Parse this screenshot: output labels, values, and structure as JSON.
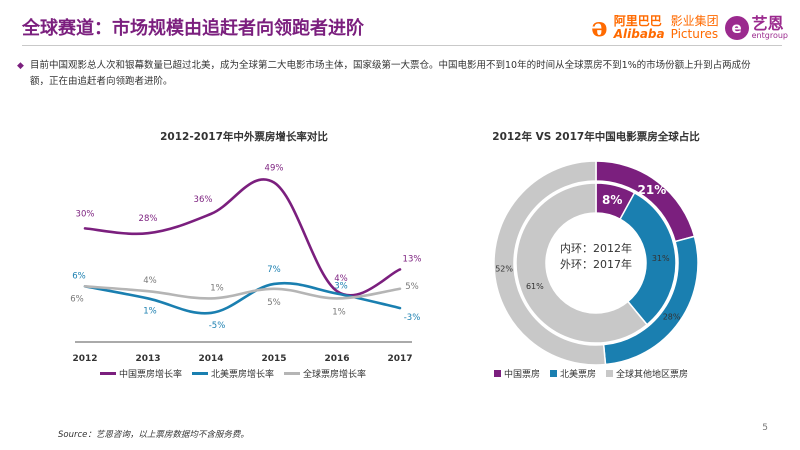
{
  "header": {
    "title": "全球赛道：市场规模由追赶者向领跑者进阶",
    "logos": {
      "alibaba_cn": "阿里巴巴",
      "alibaba_en": "Alibaba",
      "pictures_cn": "影业集团",
      "pictures_en": "Pictures",
      "ent_cn": "艺恩",
      "ent_en": "entgroup"
    }
  },
  "bullet": {
    "marker": "◆",
    "text": "目前中国观影总人次和银幕数量已超过北美，成为全球第二大电影市场主体，国家级第一大票仓。中国电影用不到10年的时间从全球票房不到1%的市场份额上升到占两成份额，正在由追赶者向领跑者进阶。"
  },
  "chart_data": [
    {
      "type": "line",
      "title": "2012-2017年中外票房增长率对比",
      "x": [
        "2012",
        "2013",
        "2014",
        "2015",
        "2016",
        "2017"
      ],
      "ylim": [
        -10,
        55
      ],
      "series": [
        {
          "name": "中国票房增长率",
          "color": "#7b1f7e",
          "values": [
            30,
            28,
            36,
            49,
            4,
            13
          ],
          "labels": [
            "30%",
            "28%",
            "36%",
            "49%",
            "4%",
            "13%"
          ]
        },
        {
          "name": "北美票房增长率",
          "color": "#1a7fb0",
          "values": [
            6,
            1,
            -5,
            7,
            3,
            -3
          ],
          "labels": [
            "6%",
            "1%",
            "-5%",
            "7%",
            "3%",
            "-3%"
          ]
        },
        {
          "name": "全球票房增长率",
          "color": "#b5b5b5",
          "values": [
            6,
            4,
            1,
            5,
            1,
            5
          ],
          "labels": [
            "6%",
            "4%",
            "1%",
            "5%",
            "1%",
            "5%"
          ]
        }
      ],
      "grid": false,
      "legend": "bottom"
    },
    {
      "type": "pie",
      "subtype": "double-donut",
      "title": "2012年 VS 2017年中国电影票房全球占比",
      "center_label_inner": "内环：2012年",
      "center_label_outer": "外环：2017年",
      "categories": [
        "中国票房",
        "北美票房",
        "全球其他地区票房"
      ],
      "colors": [
        "#7b1f7e",
        "#1a7fb0",
        "#c8c8c8"
      ],
      "outer_ring_2017": [
        21,
        28,
        52
      ],
      "inner_ring_2012": [
        8,
        31,
        61
      ],
      "outer_labels": [
        "21%",
        "28%",
        "52%"
      ],
      "inner_labels": [
        "8%",
        "31%",
        "61%"
      ],
      "legend": "bottom"
    }
  ],
  "footer": {
    "source": "Source：艺恩咨询，以上票房数据均不含服务费。",
    "page": "5"
  }
}
